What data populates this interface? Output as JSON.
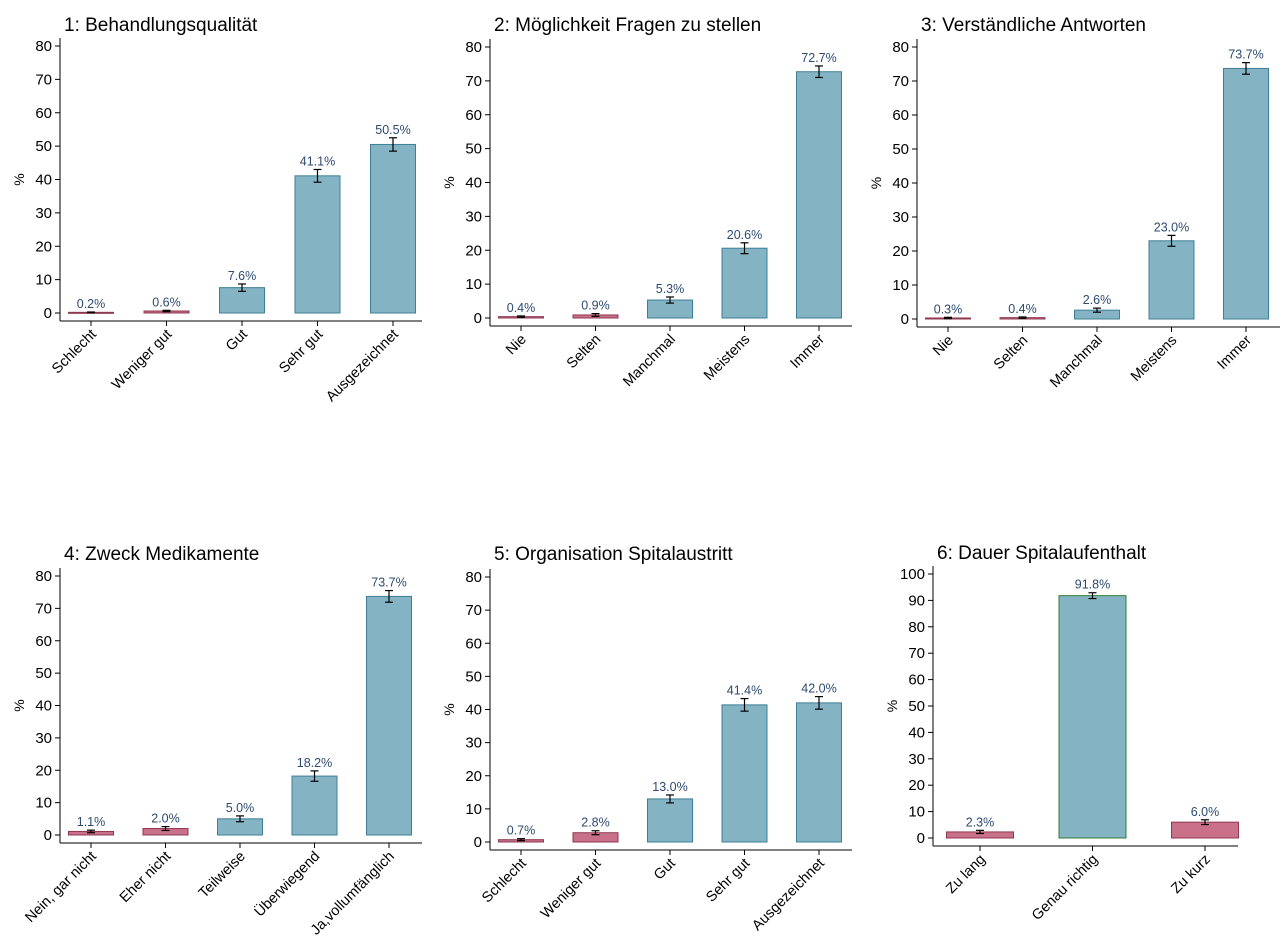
{
  "colors": {
    "positive_fill": "#84b4c4",
    "positive_stroke": "#3e7f96",
    "negative_fill": "#c9708a",
    "negative_stroke": "#8f3850",
    "highlight_stroke": "#2e7d32",
    "label_text": "#2c4a72"
  },
  "chart_data": [
    {
      "type": "bar",
      "title": "1: Behandlungsqualität",
      "ylabel": "%",
      "ylim": [
        0,
        80
      ],
      "yticks": [
        0,
        10,
        20,
        30,
        40,
        50,
        60,
        70,
        80
      ],
      "categories": [
        "Schlecht",
        "Weniger gut",
        "Gut",
        "Sehr gut",
        "Ausgezeichnet"
      ],
      "values": [
        0.2,
        0.6,
        7.6,
        41.1,
        50.5
      ],
      "labels": [
        "0.2%",
        "0.6%",
        "7.6%",
        "41.1%",
        "50.5%"
      ],
      "ci": [
        [
          0.1,
          0.3
        ],
        [
          0.4,
          0.8
        ],
        [
          6.5,
          8.7
        ],
        [
          39.2,
          43.0
        ],
        [
          48.5,
          52.5
        ]
      ],
      "color_class": [
        "negative",
        "negative",
        "positive",
        "positive",
        "positive"
      ]
    },
    {
      "type": "bar",
      "title": "2: Möglichkeit Fragen zu stellen",
      "ylabel": "%",
      "ylim": [
        0,
        80
      ],
      "yticks": [
        0,
        10,
        20,
        30,
        40,
        50,
        60,
        70,
        80
      ],
      "categories": [
        "Nie",
        "Selten",
        "Manchmal",
        "Meistens",
        "Immer"
      ],
      "values": [
        0.4,
        0.9,
        5.3,
        20.6,
        72.7
      ],
      "labels": [
        "0.4%",
        "0.9%",
        "5.3%",
        "20.6%",
        "72.7%"
      ],
      "ci": [
        [
          0.2,
          0.6
        ],
        [
          0.5,
          1.3
        ],
        [
          4.4,
          6.2
        ],
        [
          19.0,
          22.2
        ],
        [
          71.0,
          74.4
        ]
      ],
      "color_class": [
        "negative",
        "negative",
        "positive",
        "positive",
        "positive"
      ]
    },
    {
      "type": "bar",
      "title": "3: Verständliche Antworten",
      "ylabel": "%",
      "ylim": [
        0,
        80
      ],
      "yticks": [
        0,
        10,
        20,
        30,
        40,
        50,
        60,
        70,
        80
      ],
      "categories": [
        "Nie",
        "Selten",
        "Manchmal",
        "Meistens",
        "Immer"
      ],
      "values": [
        0.3,
        0.4,
        2.6,
        23.0,
        73.7
      ],
      "labels": [
        "0.3%",
        "0.4%",
        "2.6%",
        "23.0%",
        "73.7%"
      ],
      "ci": [
        [
          0.1,
          0.5
        ],
        [
          0.2,
          0.6
        ],
        [
          2.0,
          3.2
        ],
        [
          21.4,
          24.6
        ],
        [
          72.0,
          75.4
        ]
      ],
      "color_class": [
        "negative",
        "negative",
        "positive",
        "positive",
        "positive"
      ]
    },
    {
      "type": "bar",
      "title": "4: Zweck Medikamente",
      "ylabel": "%",
      "ylim": [
        0,
        80
      ],
      "yticks": [
        0,
        10,
        20,
        30,
        40,
        50,
        60,
        70,
        80
      ],
      "categories": [
        "Nein, gar nicht",
        "Eher nicht",
        "Teilweise",
        "Überwiegend",
        "Ja,vollumfänglich"
      ],
      "values": [
        1.1,
        2.0,
        5.0,
        18.2,
        73.7
      ],
      "labels": [
        "1.1%",
        "2.0%",
        "5.0%",
        "18.2%",
        "73.7%"
      ],
      "ci": [
        [
          0.7,
          1.5
        ],
        [
          1.4,
          2.6
        ],
        [
          4.1,
          5.9
        ],
        [
          16.6,
          19.8
        ],
        [
          71.9,
          75.5
        ]
      ],
      "color_class": [
        "negative",
        "negative",
        "positive",
        "positive",
        "positive"
      ]
    },
    {
      "type": "bar",
      "title": "5: Organisation Spitalaustritt",
      "ylabel": "%",
      "ylim": [
        0,
        80
      ],
      "yticks": [
        0,
        10,
        20,
        30,
        40,
        50,
        60,
        70,
        80
      ],
      "categories": [
        "Schlecht",
        "Weniger gut",
        "Gut",
        "Sehr gut",
        "Ausgezeichnet"
      ],
      "values": [
        0.7,
        2.8,
        13.0,
        41.4,
        42.0
      ],
      "labels": [
        "0.7%",
        "2.8%",
        "13.0%",
        "41.4%",
        "42.0%"
      ],
      "ci": [
        [
          0.4,
          1.0
        ],
        [
          2.2,
          3.4
        ],
        [
          11.8,
          14.2
        ],
        [
          39.5,
          43.3
        ],
        [
          40.1,
          43.9
        ]
      ],
      "color_class": [
        "negative",
        "negative",
        "positive",
        "positive",
        "positive"
      ]
    },
    {
      "type": "bar",
      "title": "6: Dauer Spitalaufenthalt",
      "ylabel": "%",
      "ylim": [
        0,
        100
      ],
      "yticks": [
        0,
        10,
        20,
        30,
        40,
        50,
        60,
        70,
        80,
        90,
        100
      ],
      "categories": [
        "Zu lang",
        "Genau richtig",
        "Zu kurz"
      ],
      "values": [
        2.3,
        91.8,
        6.0
      ],
      "labels": [
        "2.3%",
        "91.8%",
        "6.0%"
      ],
      "ci": [
        [
          1.7,
          2.9
        ],
        [
          90.7,
          92.9
        ],
        [
          5.1,
          6.9
        ]
      ],
      "color_class": [
        "negative",
        "highlight",
        "negative"
      ]
    }
  ]
}
